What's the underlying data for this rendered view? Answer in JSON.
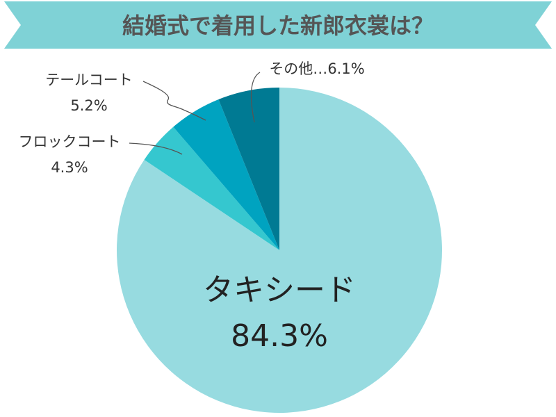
{
  "colors": {
    "banner": "#7fd2d6",
    "title_text": "#555555",
    "leader_line": "#555555",
    "label_text": "#333333"
  },
  "chart_data": {
    "type": "pie",
    "title": "結婚式で着用した新郎衣裳は？",
    "start": "12 o'clock",
    "direction": "clockwise",
    "slices": [
      {
        "label": "タキシード",
        "value_label": "84.3%",
        "value": 84.3,
        "color": "#97dbe0"
      },
      {
        "label": "フロックコート",
        "value_label": "4.3%",
        "value": 4.3,
        "color": "#35c7cf"
      },
      {
        "label": "テールコート",
        "value_label": "5.2%",
        "value": 5.2,
        "color": "#00a3c0"
      },
      {
        "label": "その他…",
        "value_label": "6.1%",
        "value": 6.1,
        "color": "#007a93"
      }
    ]
  }
}
